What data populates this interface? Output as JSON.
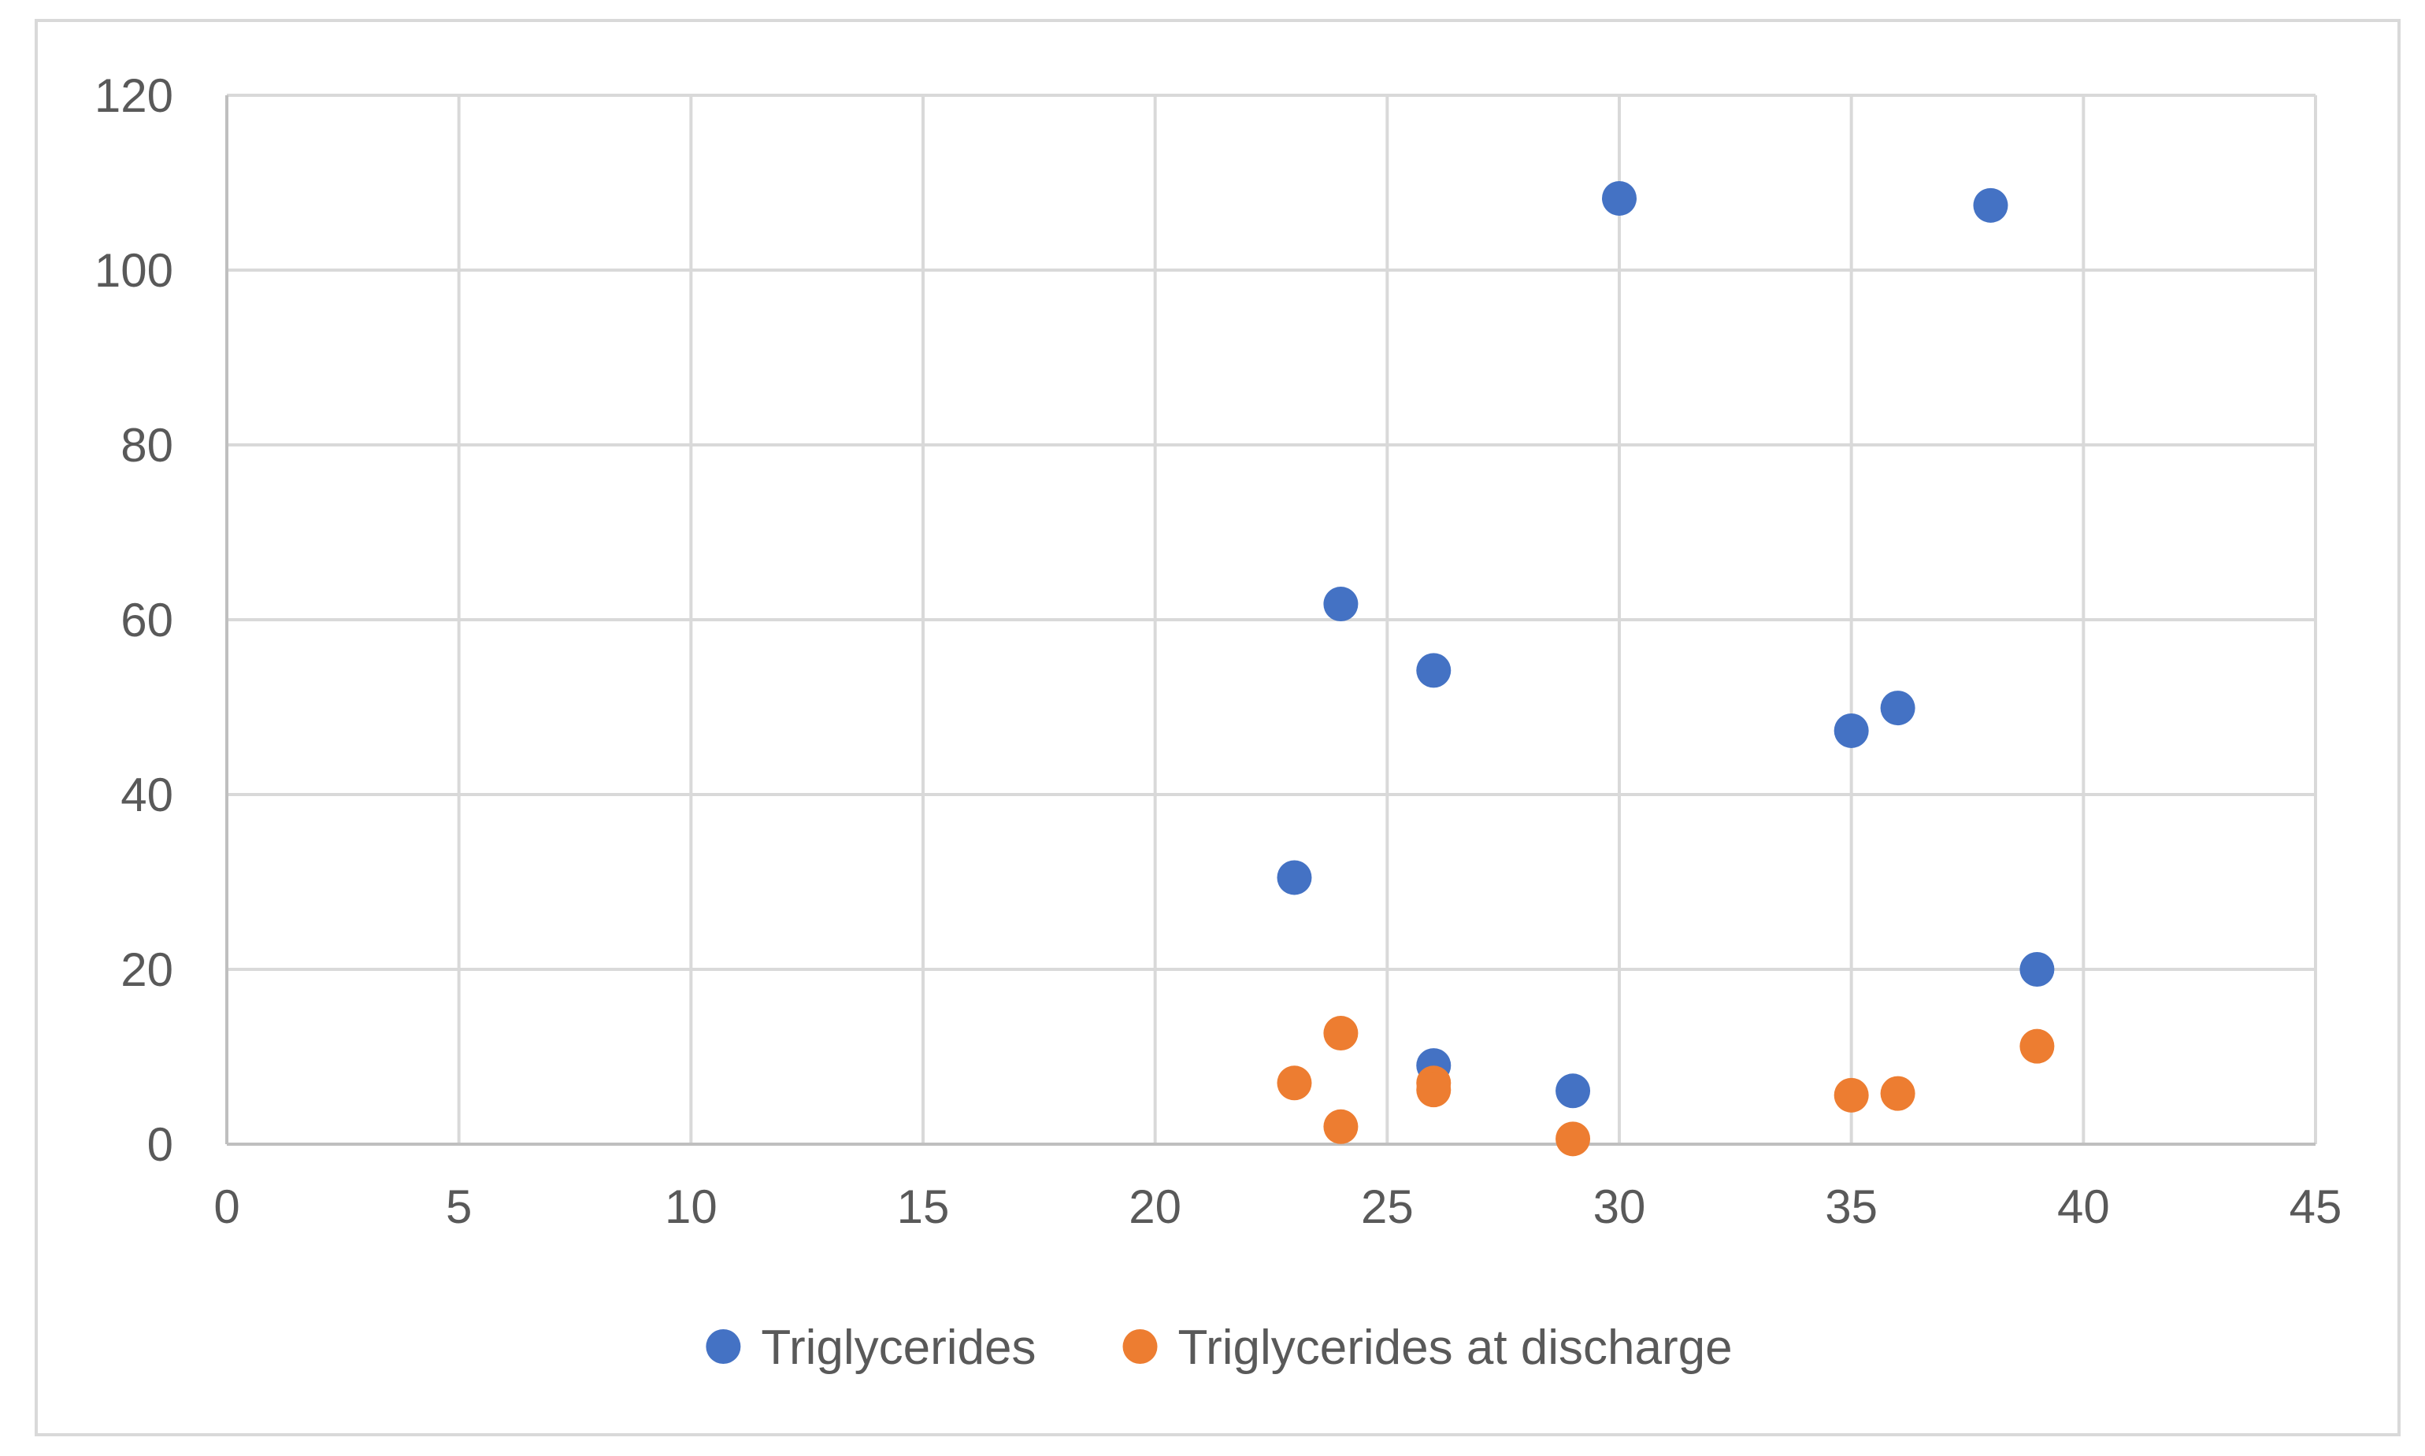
{
  "chart_data": {
    "type": "scatter",
    "title": "",
    "xlabel": "",
    "ylabel": "",
    "xlim": [
      0,
      45
    ],
    "ylim": [
      0,
      120
    ],
    "x_ticks": [
      0,
      5,
      10,
      15,
      20,
      25,
      30,
      35,
      40,
      45
    ],
    "y_ticks": [
      0,
      20,
      40,
      60,
      80,
      100,
      120
    ],
    "x_tick_labels": [
      "0",
      "5",
      "10",
      "15",
      "20",
      "25",
      "30",
      "35",
      "40",
      "45"
    ],
    "y_tick_labels": [
      "0",
      "20",
      "40",
      "60",
      "80",
      "100",
      "120"
    ],
    "grid": true,
    "legend_position": "bottom",
    "series": [
      {
        "name": "Triglycerides",
        "color": "#4472c4",
        "points": [
          {
            "x": 23,
            "y": 30.5
          },
          {
            "x": 24,
            "y": 61.8
          },
          {
            "x": 26,
            "y": 54.2
          },
          {
            "x": 26,
            "y": 9
          },
          {
            "x": 29,
            "y": 6.1
          },
          {
            "x": 30,
            "y": 108.2
          },
          {
            "x": 35,
            "y": 47.3
          },
          {
            "x": 36,
            "y": 49.9
          },
          {
            "x": 38,
            "y": 107.4
          },
          {
            "x": 39,
            "y": 20
          }
        ]
      },
      {
        "name": "Triglycerides at discharge",
        "color": "#ed7d31",
        "points": [
          {
            "x": 23,
            "y": 7
          },
          {
            "x": 24,
            "y": 12.7
          },
          {
            "x": 24,
            "y": 2
          },
          {
            "x": 26,
            "y": 7
          },
          {
            "x": 26,
            "y": 6.2
          },
          {
            "x": 29,
            "y": 0.6
          },
          {
            "x": 35,
            "y": 5.6
          },
          {
            "x": 36,
            "y": 5.8
          },
          {
            "x": 39,
            "y": 11.2
          }
        ]
      }
    ]
  },
  "colors": {
    "grid": "#d9d9d9",
    "axis": "#bfbfbf",
    "text": "#595959",
    "frame": "#d9d9d9"
  }
}
